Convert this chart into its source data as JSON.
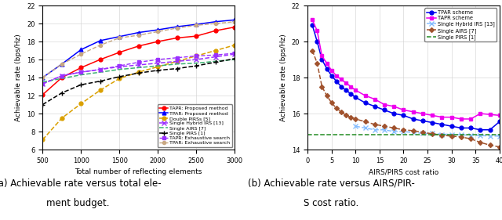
{
  "left": {
    "x": [
      500,
      750,
      1000,
      1250,
      1500,
      1750,
      2000,
      2250,
      2500,
      2750,
      3000
    ],
    "tapr_proposed": [
      12.1,
      14.0,
      15.1,
      16.0,
      16.8,
      17.5,
      18.0,
      18.4,
      18.6,
      19.2,
      19.6
    ],
    "tpar_proposed": [
      14.0,
      15.5,
      17.1,
      18.1,
      18.55,
      19.0,
      19.3,
      19.65,
      19.9,
      20.2,
      20.4
    ],
    "double_pirs": [
      7.1,
      9.5,
      11.1,
      12.6,
      13.9,
      14.6,
      15.2,
      15.8,
      16.4,
      17.0,
      17.6
    ],
    "single_hybrid": [
      13.3,
      14.2,
      14.6,
      14.9,
      15.2,
      15.4,
      15.6,
      15.8,
      16.0,
      16.3,
      16.6
    ],
    "single_airs": [
      13.5,
      13.9,
      14.3,
      14.6,
      14.9,
      15.1,
      15.3,
      15.5,
      15.6,
      15.8,
      16.0
    ],
    "single_pirs": [
      11.0,
      12.3,
      13.2,
      13.6,
      14.1,
      14.5,
      14.8,
      15.0,
      15.3,
      15.7,
      16.1
    ],
    "tapr_exhaustive": [
      13.3,
      14.2,
      14.6,
      14.9,
      15.3,
      15.7,
      16.0,
      16.2,
      16.4,
      16.5,
      16.7
    ],
    "tpar_exhaustive": [
      14.0,
      15.5,
      16.6,
      17.6,
      18.4,
      18.7,
      19.1,
      19.5,
      19.8,
      20.0,
      20.2
    ],
    "ylim": [
      6,
      22
    ],
    "yticks": [
      6,
      8,
      10,
      12,
      14,
      16,
      18,
      20,
      22
    ],
    "xlim": [
      500,
      3000
    ],
    "xticks": [
      500,
      1000,
      1500,
      2000,
      2500,
      3000
    ],
    "xlabel": "Total number of reflecting elements",
    "ylabel": "Achievable rate (bps/Hz)",
    "caption_left": "(a) Achievable rate versus total ele-",
    "caption_right": "ment budget."
  },
  "right": {
    "x": [
      1,
      2,
      3,
      4,
      5,
      6,
      7,
      8,
      9,
      10,
      12,
      14,
      16,
      18,
      20,
      22,
      24,
      26,
      28,
      30,
      32,
      34,
      36,
      38,
      40
    ],
    "tpar_scheme": [
      20.9,
      20.0,
      19.0,
      18.5,
      18.1,
      17.8,
      17.5,
      17.3,
      17.1,
      16.9,
      16.6,
      16.4,
      16.2,
      16.0,
      15.9,
      15.7,
      15.6,
      15.5,
      15.4,
      15.3,
      15.2,
      15.2,
      15.1,
      15.1,
      15.55
    ],
    "tapr_scheme": [
      21.2,
      20.6,
      19.2,
      18.8,
      18.4,
      18.1,
      17.9,
      17.7,
      17.5,
      17.3,
      17.0,
      16.8,
      16.5,
      16.4,
      16.2,
      16.1,
      16.0,
      15.9,
      15.8,
      15.8,
      15.7,
      15.7,
      16.0,
      15.95,
      15.9
    ],
    "single_hybrid_x": [
      10,
      12,
      14,
      16,
      18,
      20,
      22,
      24,
      26,
      28,
      30,
      32,
      34,
      36,
      38,
      40
    ],
    "single_hybrid_y": [
      15.3,
      15.2,
      15.1,
      15.1,
      15.0,
      15.0,
      14.95,
      14.9,
      14.9,
      14.85,
      14.85,
      14.82,
      14.8,
      14.78,
      14.76,
      14.75
    ],
    "single_airs": [
      19.5,
      18.8,
      17.5,
      17.0,
      16.6,
      16.3,
      16.1,
      15.9,
      15.8,
      15.7,
      15.55,
      15.4,
      15.3,
      15.2,
      15.1,
      15.05,
      14.95,
      14.88,
      14.8,
      14.75,
      14.7,
      14.6,
      14.4,
      14.25,
      14.15
    ],
    "single_pirs": 14.82,
    "ylim": [
      14,
      22
    ],
    "yticks": [
      14,
      16,
      18,
      20,
      22
    ],
    "xlim": [
      0,
      40
    ],
    "xticks": [
      0,
      5,
      10,
      15,
      20,
      25,
      30,
      35,
      40
    ],
    "xlabel": "AIRS/PIRS cost ratio",
    "ylabel": "Achievable rate (bps/Hz)",
    "caption_left": "(b) Achievable rate versus AIRS/PIR-",
    "caption_right": "S cost ratio."
  },
  "tapr_color": "#FF0000",
  "tpar_color": "#0000FF",
  "double_pirs_color": "#DAA000",
  "single_hybrid_left_color": "#9B30FF",
  "single_airs_left_color": "#3CB371",
  "single_pirs_left_color": "#000000",
  "tapr_exhaustive_color": "#9B30FF",
  "tpar_exhaustive_color": "#C8A882",
  "tpar_right_color": "#0000EE",
  "tapr_right_color": "#EE00EE",
  "single_hybrid_right_color": "#87BEFF",
  "single_airs_right_color": "#A0522D",
  "single_pirs_right_color": "#228B22"
}
